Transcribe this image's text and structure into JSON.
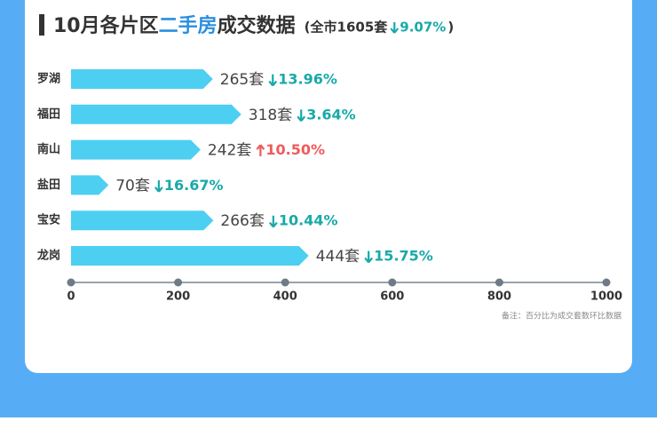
{
  "chart_data": {
    "type": "bar",
    "orientation": "horizontal",
    "title_parts": [
      "10月各片区",
      "二手房",
      "成交数据"
    ],
    "subtitle_parts": [
      "(全市1605套",
      "9.07%",
      ")"
    ],
    "subtitle_direction": "down",
    "categories": [
      "罗湖",
      "福田",
      "南山",
      "盐田",
      "宝安",
      "龙岗"
    ],
    "values": [
      265,
      318,
      242,
      70,
      266,
      444
    ],
    "value_labels": [
      "265套",
      "318套",
      "242套",
      "70套",
      "266套",
      "444套"
    ],
    "change_labels": [
      "13.96%",
      "3.64%",
      "10.50%",
      "16.67%",
      "10.44%",
      "15.75%"
    ],
    "change_directions": [
      "down",
      "down",
      "up",
      "down",
      "down",
      "down"
    ],
    "color": "#4dcff2",
    "down_color": "#19a9a9",
    "up_color": "#ee5b5b",
    "title_highlight_color": "#2a8fe0",
    "xlim": [
      0,
      1000
    ],
    "xticks": [
      0,
      200,
      400,
      600,
      800,
      1000
    ],
    "note": "备注：百分比为成交套数环比数据"
  }
}
